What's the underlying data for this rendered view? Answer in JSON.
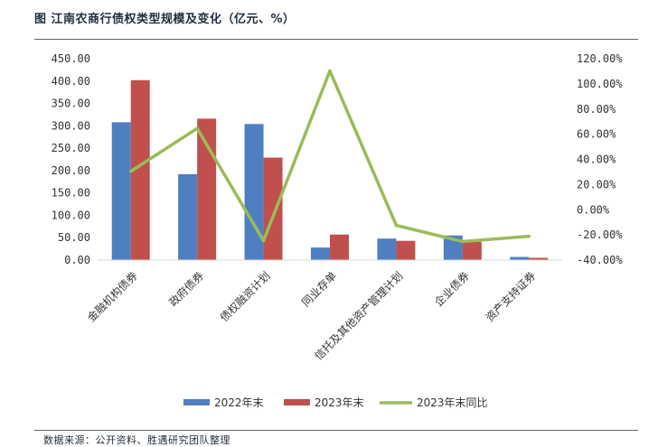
{
  "title": "图 江南农商行债权类型规模及变化（亿元、%）",
  "source": "数据来源：公开资料、胜遇研究团队整理",
  "chart_data": {
    "type": "bar",
    "categories": [
      "金融机构债券",
      "政府债券",
      "债权融资计划",
      "同业存单",
      "信托及其他资产管理计划",
      "企业债券",
      "资产支持证券"
    ],
    "series": [
      {
        "name": "2022年末",
        "type": "bar",
        "axis": "left",
        "color": "#4f7fc1",
        "values": [
          308,
          192,
          304,
          28,
          48,
          55,
          7
        ]
      },
      {
        "name": "2023年末",
        "type": "bar",
        "axis": "left",
        "color": "#c0504d",
        "values": [
          402,
          316,
          229,
          57,
          43,
          41,
          5
        ]
      },
      {
        "name": "2023年末同比",
        "type": "line",
        "axis": "right",
        "color": "#9bbb59",
        "values": [
          30.5,
          64.6,
          -24.7,
          110.3,
          -12.4,
          -25.3,
          -21.1
        ]
      }
    ],
    "left_axis": {
      "min": 0,
      "max": 450,
      "step": 50,
      "ticks": [
        "0.00",
        "50.00",
        "100.00",
        "150.00",
        "200.00",
        "250.00",
        "300.00",
        "350.00",
        "400.00",
        "450.00"
      ]
    },
    "right_axis": {
      "min": -40,
      "max": 120,
      "step": 20,
      "ticks": [
        "-40.00%",
        "-20.00%",
        "0.00%",
        "20.00%",
        "40.00%",
        "60.00%",
        "80.00%",
        "100.00%",
        "120.00%"
      ]
    },
    "grid": false,
    "legend_position": "bottom"
  }
}
